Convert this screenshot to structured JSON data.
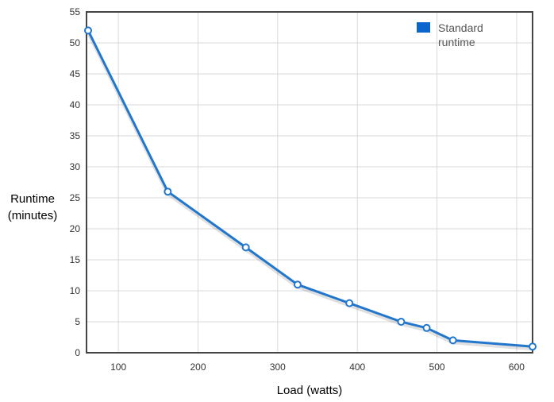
{
  "chart_data": {
    "type": "line",
    "xlabel": "Load (watts)",
    "ylabel": [
      "Runtime",
      "(minutes)"
    ],
    "xlim": [
      60,
      620
    ],
    "ylim": [
      0,
      55
    ],
    "xticks": [
      100,
      200,
      300,
      400,
      500,
      600
    ],
    "yticks": [
      0,
      5,
      10,
      15,
      20,
      25,
      30,
      35,
      40,
      45,
      50,
      55
    ],
    "grid": true,
    "legend_position": "top-right",
    "series": [
      {
        "name": [
          "Standard",
          "runtime"
        ],
        "color": "#2277cc",
        "x": [
          62,
          162,
          260,
          325,
          390,
          455,
          487,
          520,
          620
        ],
        "y": [
          52,
          26,
          17,
          11,
          8,
          5,
          4,
          2,
          1
        ]
      }
    ]
  }
}
